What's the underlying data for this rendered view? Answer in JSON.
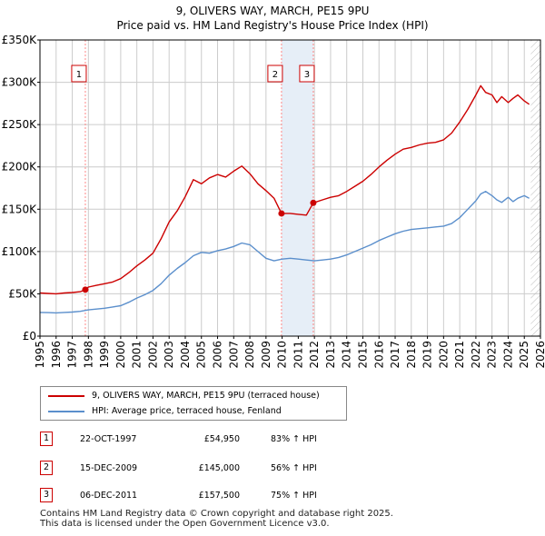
{
  "title": {
    "line1": "9, OLIVERS WAY, MARCH, PE15 9PU",
    "line2": "Price paid vs. HM Land Registry's House Price Index (HPI)"
  },
  "colors": {
    "property": "#cc0000",
    "hpi": "#5b8fcc",
    "grid": "#cccccc",
    "marker_line": "#ff8888",
    "sale_shade": "#e6eef7"
  },
  "chart_data": {
    "type": "line",
    "title": "9, OLIVERS WAY, MARCH, PE15 9PU — Price paid vs. HM Land Registry's House Price Index (HPI)",
    "xlabel": "",
    "ylabel": "",
    "xlim": [
      1995,
      2026
    ],
    "ylim": [
      0,
      350000
    ],
    "grid": true,
    "y_ticks": [
      0,
      50000,
      100000,
      150000,
      200000,
      250000,
      300000,
      350000
    ],
    "y_tick_labels": [
      "£0",
      "£50K",
      "£100K",
      "£150K",
      "£200K",
      "£250K",
      "£300K",
      "£350K"
    ],
    "x_ticks": [
      1995,
      1996,
      1997,
      1998,
      1999,
      2000,
      2001,
      2002,
      2003,
      2004,
      2005,
      2006,
      2007,
      2008,
      2009,
      2010,
      2011,
      2012,
      2013,
      2014,
      2015,
      2016,
      2017,
      2018,
      2019,
      2020,
      2021,
      2022,
      2023,
      2024,
      2025,
      2026
    ],
    "future_hatch_from": 2025.4,
    "series": [
      {
        "name": "9, OLIVERS WAY, MARCH, PE15 9PU (terraced house)",
        "color": "#cc0000",
        "x": [
          1995.0,
          1995.5,
          1996.0,
          1996.5,
          1997.0,
          1997.5,
          1997.81,
          1998.0,
          1998.5,
          1999.0,
          1999.5,
          2000.0,
          2000.5,
          2001.0,
          2001.5,
          2002.0,
          2002.5,
          2003.0,
          2003.5,
          2004.0,
          2004.5,
          2005.0,
          2005.5,
          2006.0,
          2006.5,
          2007.0,
          2007.5,
          2008.0,
          2008.5,
          2009.0,
          2009.5,
          2009.96,
          2010.5,
          2011.0,
          2011.5,
          2011.93,
          2012.5,
          2013.0,
          2013.5,
          2014.0,
          2014.5,
          2015.0,
          2015.5,
          2016.0,
          2016.5,
          2017.0,
          2017.5,
          2018.0,
          2018.5,
          2019.0,
          2019.5,
          2020.0,
          2020.5,
          2021.0,
          2021.5,
          2022.0,
          2022.3,
          2022.6,
          2023.0,
          2023.3,
          2023.6,
          2024.0,
          2024.3,
          2024.6,
          2025.0,
          2025.3
        ],
        "values": [
          51000,
          50500,
          50000,
          51000,
          51500,
          52500,
          54950,
          58000,
          60000,
          62000,
          64000,
          68000,
          75000,
          83000,
          90000,
          98000,
          115000,
          135000,
          148000,
          165000,
          185000,
          180000,
          187000,
          191000,
          188000,
          195000,
          201000,
          192000,
          180000,
          172000,
          163000,
          145000,
          145000,
          144000,
          143000,
          157500,
          161000,
          164000,
          166000,
          171000,
          177000,
          183000,
          191000,
          200000,
          208000,
          215000,
          221000,
          223000,
          226000,
          228000,
          229000,
          232000,
          240000,
          253000,
          268000,
          285000,
          296000,
          288000,
          285000,
          276000,
          283000,
          276000,
          281000,
          285000,
          278000,
          274000
        ]
      },
      {
        "name": "HPI: Average price, terraced house, Fenland",
        "color": "#5b8fcc",
        "x": [
          1995.0,
          1995.5,
          1996.0,
          1996.5,
          1997.0,
          1997.5,
          1998.0,
          1998.5,
          1999.0,
          1999.5,
          2000.0,
          2000.5,
          2001.0,
          2001.5,
          2002.0,
          2002.5,
          2003.0,
          2003.5,
          2004.0,
          2004.5,
          2005.0,
          2005.5,
          2006.0,
          2006.5,
          2007.0,
          2007.5,
          2008.0,
          2008.5,
          2009.0,
          2009.5,
          2010.0,
          2010.5,
          2011.0,
          2011.5,
          2012.0,
          2012.5,
          2013.0,
          2013.5,
          2014.0,
          2014.5,
          2015.0,
          2015.5,
          2016.0,
          2016.5,
          2017.0,
          2017.5,
          2018.0,
          2018.5,
          2019.0,
          2019.5,
          2020.0,
          2020.5,
          2021.0,
          2021.5,
          2022.0,
          2022.3,
          2022.6,
          2023.0,
          2023.3,
          2023.6,
          2024.0,
          2024.3,
          2024.6,
          2025.0,
          2025.3
        ],
        "values": [
          28000,
          27800,
          27500,
          28000,
          28500,
          29300,
          31000,
          32000,
          33000,
          34500,
          36000,
          40000,
          45000,
          49000,
          54000,
          62000,
          72000,
          80000,
          87000,
          95000,
          99000,
          98000,
          101000,
          103000,
          106000,
          110000,
          108000,
          100000,
          92000,
          89000,
          91000,
          92000,
          91000,
          90000,
          89000,
          90000,
          91000,
          93000,
          96000,
          100000,
          104000,
          108000,
          113000,
          117000,
          121000,
          124000,
          126000,
          127000,
          128000,
          129000,
          130000,
          133000,
          140000,
          150000,
          160000,
          168000,
          171000,
          166000,
          161000,
          158000,
          164000,
          159000,
          163000,
          166000,
          163000
        ]
      }
    ],
    "sales": [
      {
        "label": "1",
        "x": 1997.81,
        "price": 54950
      },
      {
        "label": "2",
        "x": 2009.96,
        "price": 145000
      },
      {
        "label": "3",
        "x": 2011.93,
        "price": 157500
      }
    ]
  },
  "legend": {
    "property": "9, OLIVERS WAY, MARCH, PE15 9PU (terraced house)",
    "hpi": "HPI: Average price, terraced house, Fenland"
  },
  "transactions": [
    {
      "num": "1",
      "date": "22-OCT-1997",
      "price": "£54,950",
      "hpi": "83% ↑ HPI"
    },
    {
      "num": "2",
      "date": "15-DEC-2009",
      "price": "£145,000",
      "hpi": "56% ↑ HPI"
    },
    {
      "num": "3",
      "date": "06-DEC-2011",
      "price": "£157,500",
      "hpi": "75% ↑ HPI"
    }
  ],
  "footer": {
    "line1": "Contains HM Land Registry data © Crown copyright and database right 2025.",
    "line2": "This data is licensed under the Open Government Licence v3.0."
  }
}
